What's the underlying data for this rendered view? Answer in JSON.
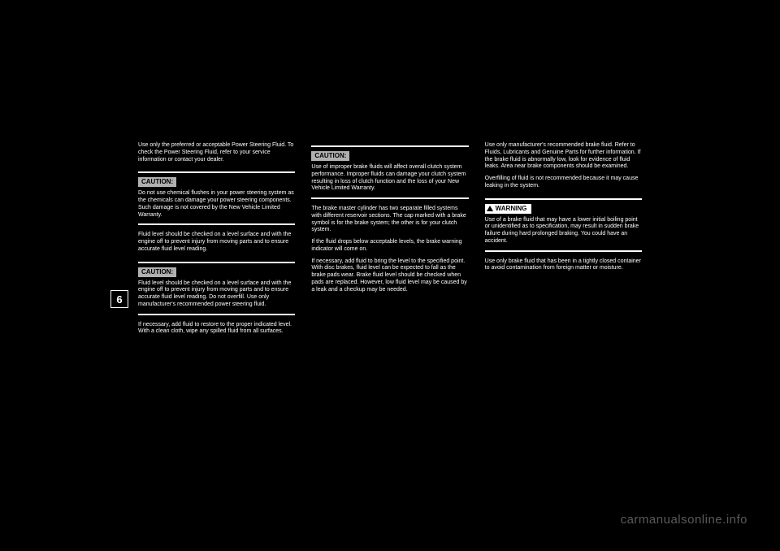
{
  "page": {
    "tab_number": "6"
  },
  "col1": {
    "intro1": "Use only the preferred or acceptable Power Steering Fluid. To check the Power Steering Fluid, refer to your service information or contact your dealer.",
    "caution1": {
      "label": "CAUTION:",
      "body": "Do not use chemical flushes in your power steering system as the chemicals can damage your power steering components. Such damage is not covered by the New Vehicle Limited Warranty."
    },
    "mid": "Fluid level should be checked on a level surface and with the engine off to prevent injury from moving parts and to ensure accurate fluid level reading.",
    "caution2": {
      "label": "CAUTION:",
      "body": "Fluid level should be checked on a level surface and with the engine off to prevent injury from moving parts and to ensure accurate fluid level reading. Do not overfill. Use only manufacturer's recommended power steering fluid."
    },
    "after": "If necessary, add fluid to restore to the proper indicated level. With a clean cloth, wipe any spilled fluid from all surfaces."
  },
  "col2": {
    "caution3": {
      "label": "CAUTION:",
      "body": "Use of improper brake fluids will affect overall clutch system performance. Improper fluids can damage your clutch system resulting in loss of clutch function and the loss of your New Vehicle Limited Warranty."
    },
    "body1": "The brake master cylinder has two separate filled systems with different reservoir sections. The cap marked with a brake symbol is for the brake system; the other is for your clutch system.",
    "body2": "If the fluid drops below acceptable levels, the brake warning indicator will come on.",
    "body3": "If necessary, add fluid to bring the level to the specified point. With disc brakes, fluid level can be expected to fall as the brake pads wear. Brake fluid level should be checked when pads are replaced. However, low fluid level may be caused by a leak and a checkup may be needed."
  },
  "col3": {
    "body1": "Use only manufacturer's recommended brake fluid. Refer to Fluids, Lubricants and Genuine Parts for further information. If the brake fluid is abnormally low, look for evidence of fluid leaks. Area near brake components should be examined.",
    "body2": "Overfilling of fluid is not recommended because it may cause leaking in the system.",
    "warning": {
      "label": "WARNING",
      "body": "Use of a brake fluid that may have a lower initial boiling point or unidentified as to specification, may result in sudden brake failure during hard prolonged braking. You could have an accident."
    },
    "after": "Use only brake fluid that has been in a tightly closed container to avoid contamination from foreign matter or moisture."
  },
  "watermark": "carmanualsonline.info"
}
